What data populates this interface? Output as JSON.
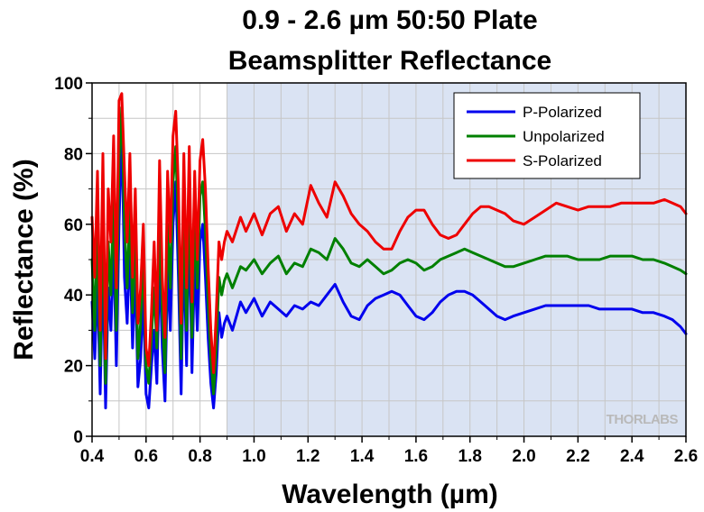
{
  "chart_data": {
    "type": "line",
    "title": [
      "0.9 - 2.6 µm 50:50 Plate",
      "Beamsplitter Reflectance"
    ],
    "xlabel": "Wavelength (µm)",
    "ylabel": "Reflectance (%)",
    "xlim": [
      0.4,
      2.6
    ],
    "ylim": [
      0,
      100
    ],
    "xticks": [
      "0.4",
      "0.6",
      "0.8",
      "1.0",
      "1.2",
      "1.4",
      "1.6",
      "1.8",
      "2.0",
      "2.2",
      "2.4",
      "2.6"
    ],
    "yticks": [
      "0",
      "20",
      "40",
      "60",
      "80",
      "100"
    ],
    "grid": true,
    "shaded_region": {
      "x": [
        0.9,
        2.6
      ],
      "color": "#dae3f3"
    },
    "legend_position": "top-right",
    "series": [
      {
        "name": "P-Polarized",
        "color": "#0000ee",
        "x": [
          0.4,
          0.41,
          0.42,
          0.43,
          0.44,
          0.45,
          0.46,
          0.47,
          0.48,
          0.49,
          0.5,
          0.51,
          0.52,
          0.53,
          0.54,
          0.55,
          0.56,
          0.57,
          0.58,
          0.59,
          0.6,
          0.61,
          0.62,
          0.63,
          0.64,
          0.65,
          0.66,
          0.67,
          0.68,
          0.69,
          0.7,
          0.71,
          0.72,
          0.73,
          0.74,
          0.75,
          0.76,
          0.77,
          0.78,
          0.79,
          0.8,
          0.81,
          0.82,
          0.83,
          0.84,
          0.85,
          0.86,
          0.87,
          0.88,
          0.89,
          0.9,
          0.92,
          0.95,
          0.97,
          1.0,
          1.03,
          1.06,
          1.09,
          1.12,
          1.15,
          1.18,
          1.21,
          1.24,
          1.27,
          1.3,
          1.33,
          1.36,
          1.39,
          1.42,
          1.45,
          1.48,
          1.51,
          1.54,
          1.57,
          1.6,
          1.63,
          1.66,
          1.69,
          1.72,
          1.75,
          1.78,
          1.81,
          1.84,
          1.87,
          1.9,
          1.93,
          1.96,
          2.0,
          2.04,
          2.08,
          2.12,
          2.16,
          2.2,
          2.24,
          2.28,
          2.32,
          2.36,
          2.4,
          2.44,
          2.48,
          2.52,
          2.55,
          2.58,
          2.6
        ],
        "y": [
          38,
          22,
          45,
          12,
          50,
          8,
          42,
          30,
          55,
          20,
          60,
          88,
          45,
          32,
          55,
          25,
          48,
          14,
          22,
          40,
          12,
          8,
          20,
          30,
          15,
          50,
          25,
          10,
          48,
          30,
          60,
          72,
          45,
          12,
          55,
          20,
          62,
          18,
          50,
          30,
          55,
          60,
          45,
          28,
          15,
          8,
          18,
          35,
          28,
          32,
          34,
          30,
          38,
          35,
          39,
          34,
          38,
          36,
          34,
          37,
          36,
          38,
          37,
          40,
          43,
          38,
          34,
          33,
          37,
          39,
          40,
          41,
          40,
          37,
          34,
          33,
          35,
          38,
          40,
          41,
          41,
          40,
          38,
          36,
          34,
          33,
          34,
          35,
          36,
          37,
          37,
          37,
          37,
          37,
          36,
          36,
          36,
          36,
          35,
          35,
          34,
          33,
          31,
          29
        ]
      },
      {
        "name": "Unpolarized",
        "color": "#008000",
        "x": [
          0.4,
          0.41,
          0.42,
          0.43,
          0.44,
          0.45,
          0.46,
          0.47,
          0.48,
          0.49,
          0.5,
          0.51,
          0.52,
          0.53,
          0.54,
          0.55,
          0.56,
          0.57,
          0.58,
          0.59,
          0.6,
          0.61,
          0.62,
          0.63,
          0.64,
          0.65,
          0.66,
          0.67,
          0.68,
          0.69,
          0.7,
          0.71,
          0.72,
          0.73,
          0.74,
          0.75,
          0.76,
          0.77,
          0.78,
          0.79,
          0.8,
          0.81,
          0.82,
          0.83,
          0.84,
          0.85,
          0.86,
          0.87,
          0.88,
          0.89,
          0.9,
          0.92,
          0.95,
          0.97,
          1.0,
          1.03,
          1.06,
          1.09,
          1.12,
          1.15,
          1.18,
          1.21,
          1.24,
          1.27,
          1.3,
          1.33,
          1.36,
          1.39,
          1.42,
          1.45,
          1.48,
          1.51,
          1.54,
          1.57,
          1.6,
          1.63,
          1.66,
          1.69,
          1.72,
          1.75,
          1.78,
          1.81,
          1.84,
          1.87,
          1.9,
          1.93,
          1.96,
          2.0,
          2.04,
          2.08,
          2.12,
          2.16,
          2.2,
          2.24,
          2.28,
          2.32,
          2.36,
          2.4,
          2.44,
          2.48,
          2.52,
          2.55,
          2.58,
          2.6
        ],
        "y": [
          50,
          30,
          62,
          20,
          65,
          15,
          55,
          40,
          70,
          30,
          78,
          93,
          60,
          42,
          65,
          35,
          60,
          22,
          32,
          52,
          20,
          15,
          28,
          42,
          25,
          62,
          35,
          18,
          60,
          42,
          72,
          82,
          58,
          22,
          65,
          30,
          72,
          28,
          62,
          42,
          68,
          72,
          58,
          38,
          22,
          12,
          25,
          45,
          40,
          44,
          46,
          42,
          48,
          47,
          50,
          46,
          49,
          51,
          46,
          49,
          48,
          53,
          52,
          50,
          56,
          53,
          49,
          48,
          50,
          48,
          46,
          47,
          49,
          50,
          49,
          47,
          48,
          50,
          51,
          52,
          53,
          52,
          51,
          50,
          49,
          48,
          48,
          49,
          50,
          51,
          51,
          51,
          50,
          50,
          50,
          51,
          51,
          51,
          50,
          50,
          49,
          48,
          47,
          46
        ]
      },
      {
        "name": "S-Polarized",
        "color": "#ee0000",
        "x": [
          0.4,
          0.41,
          0.42,
          0.43,
          0.44,
          0.45,
          0.46,
          0.47,
          0.48,
          0.49,
          0.5,
          0.51,
          0.52,
          0.53,
          0.54,
          0.55,
          0.56,
          0.57,
          0.58,
          0.59,
          0.6,
          0.61,
          0.62,
          0.63,
          0.64,
          0.65,
          0.66,
          0.67,
          0.68,
          0.69,
          0.7,
          0.71,
          0.72,
          0.73,
          0.74,
          0.75,
          0.76,
          0.77,
          0.78,
          0.79,
          0.8,
          0.81,
          0.82,
          0.83,
          0.84,
          0.85,
          0.86,
          0.87,
          0.88,
          0.89,
          0.9,
          0.92,
          0.95,
          0.97,
          1.0,
          1.03,
          1.06,
          1.09,
          1.12,
          1.15,
          1.18,
          1.21,
          1.24,
          1.27,
          1.3,
          1.33,
          1.36,
          1.39,
          1.42,
          1.45,
          1.48,
          1.51,
          1.54,
          1.57,
          1.6,
          1.63,
          1.66,
          1.69,
          1.72,
          1.75,
          1.78,
          1.81,
          1.84,
          1.87,
          1.9,
          1.93,
          1.96,
          2.0,
          2.04,
          2.08,
          2.12,
          2.16,
          2.2,
          2.24,
          2.28,
          2.32,
          2.36,
          2.4,
          2.44,
          2.48,
          2.52,
          2.55,
          2.58,
          2.6
        ],
        "y": [
          62,
          45,
          75,
          30,
          80,
          22,
          70,
          55,
          85,
          42,
          95,
          97,
          75,
          55,
          80,
          45,
          70,
          32,
          42,
          60,
          25,
          20,
          35,
          55,
          30,
          78,
          45,
          28,
          75,
          55,
          85,
          92,
          70,
          32,
          80,
          42,
          82,
          38,
          75,
          50,
          78,
          84,
          70,
          48,
          30,
          18,
          35,
          55,
          50,
          55,
          58,
          55,
          62,
          58,
          63,
          57,
          63,
          65,
          58,
          63,
          60,
          71,
          66,
          62,
          72,
          68,
          63,
          60,
          58,
          55,
          53,
          53,
          58,
          62,
          64,
          64,
          60,
          57,
          56,
          57,
          60,
          63,
          65,
          65,
          64,
          63,
          61,
          60,
          62,
          64,
          66,
          65,
          64,
          65,
          65,
          65,
          66,
          66,
          66,
          66,
          67,
          66,
          65,
          63
        ]
      }
    ],
    "watermark": "THORLABS"
  }
}
